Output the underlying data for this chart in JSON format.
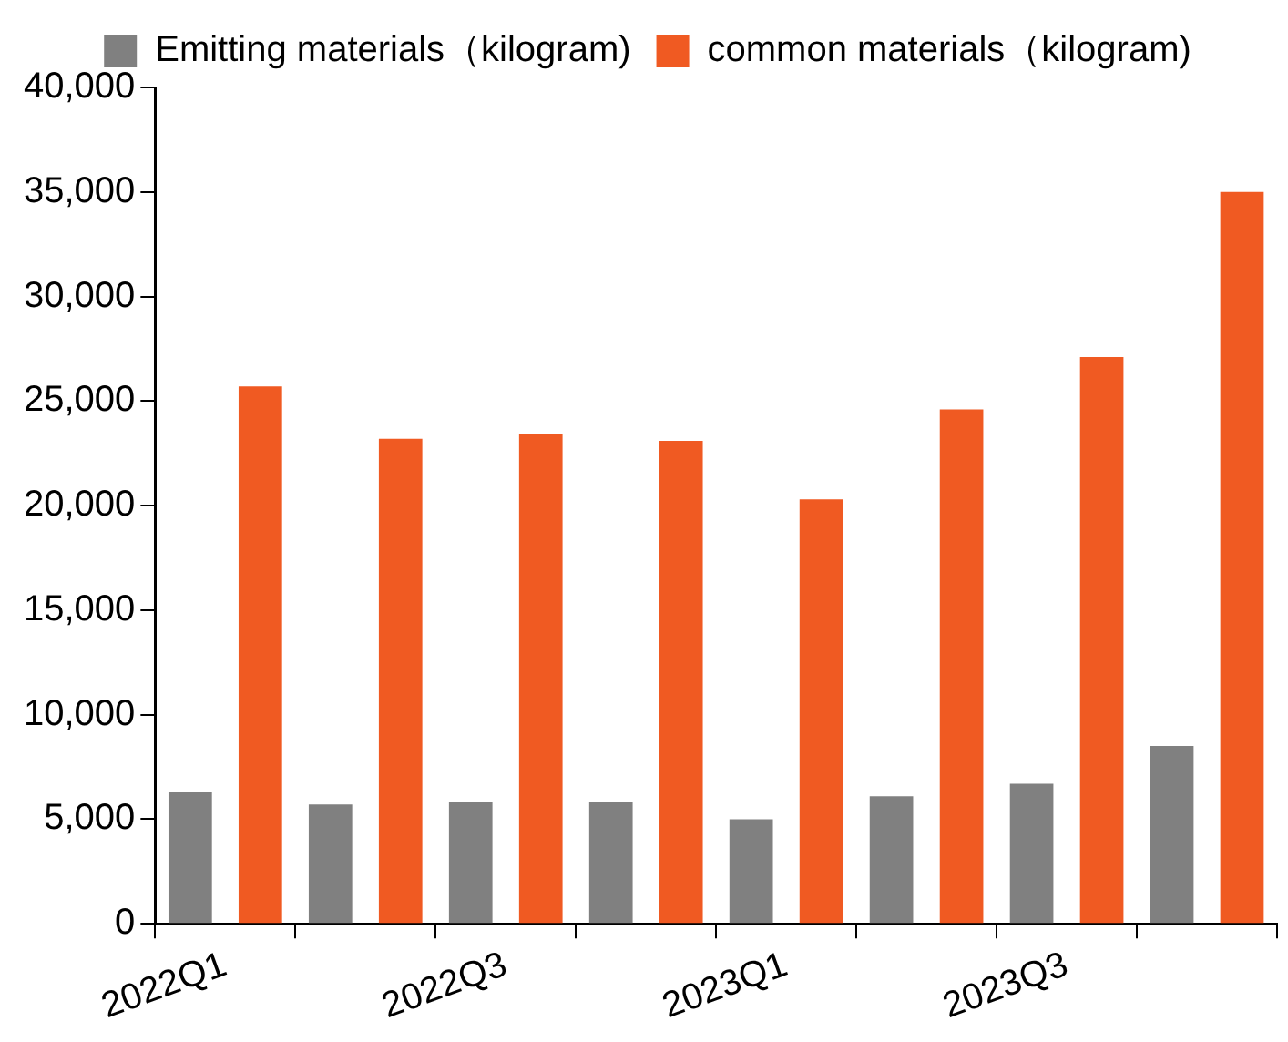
{
  "chart_data": {
    "type": "bar",
    "categories": [
      "2022Q1",
      null,
      "2022Q3",
      null,
      "2023Q1",
      null,
      "2023Q3",
      null
    ],
    "series": [
      {
        "name": "Emitting materials（kilogram)",
        "color": "#808080",
        "values": [
          6300,
          5700,
          5800,
          5800,
          5000,
          6100,
          6700,
          8500
        ]
      },
      {
        "name": "common materials（kilogram)",
        "color": "#f05a22",
        "values": [
          25700,
          23200,
          23400,
          23100,
          20300,
          24600,
          27100,
          35000
        ]
      }
    ],
    "ylim": [
      0,
      40000
    ],
    "yticks": [
      0,
      {
        "value": 5000,
        "label": "5,000"
      },
      {
        "value": 10000,
        "label": "10,000"
      },
      {
        "value": 15000,
        "label": "15,000"
      },
      {
        "value": 20000,
        "label": "20,000"
      },
      {
        "value": 25000,
        "label": "25,000"
      },
      {
        "value": 30000,
        "label": "30,000"
      },
      {
        "value": 35000,
        "label": "35,000"
      },
      {
        "value": 40000,
        "label": "40,000"
      }
    ],
    "grid": false,
    "legend": "top"
  }
}
